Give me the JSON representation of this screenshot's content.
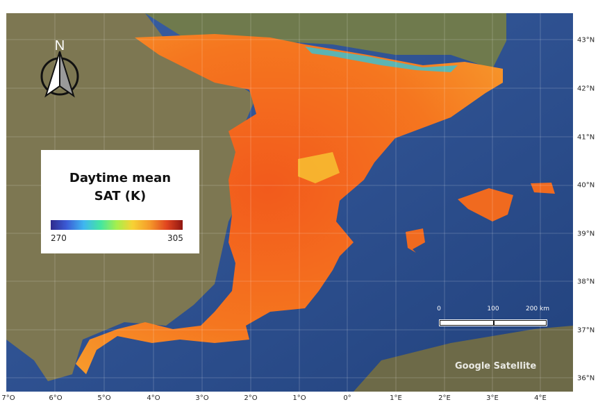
{
  "legend": {
    "title_line1": "Daytime mean",
    "title_line2": "SAT (K)",
    "min_label": "270",
    "max_label": "305",
    "colormap": [
      "#2e2a8c",
      "#3b5bd6",
      "#3fb6f0",
      "#45e6a0",
      "#a6ef4c",
      "#f7d234",
      "#f59a2a",
      "#e0441f",
      "#8f1612"
    ]
  },
  "north_arrow": {
    "label": "N"
  },
  "lat_labels": [
    "43°N",
    "42°N",
    "41°N",
    "40°N",
    "39°N",
    "38°N",
    "37°N",
    "36°N"
  ],
  "lon_labels": [
    "7°O",
    "6°O",
    "5°O",
    "4°O",
    "3°O",
    "2°O",
    "1°O",
    "0°",
    "1°E",
    "2°E",
    "3°E",
    "4°E"
  ],
  "scale_bar": {
    "labels": [
      "0",
      "100",
      "200 km"
    ]
  },
  "attribution": "Google Satellite",
  "colors": {
    "sea": "#2d4f8e",
    "land": "#7b7a55",
    "hot": "#f0611e",
    "warm": "#f7a12a",
    "cool": "#36c3d6"
  }
}
